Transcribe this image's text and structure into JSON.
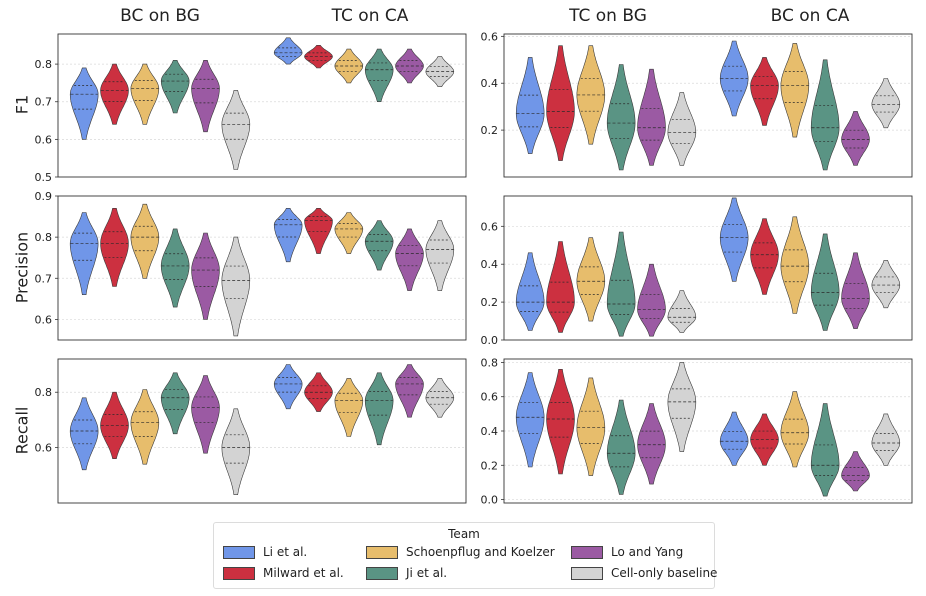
{
  "column_titles": [
    "BC on BG",
    "TC on CA",
    "TC on BG",
    "BC on CA"
  ],
  "row_labels": [
    "F1",
    "Precision",
    "Recall"
  ],
  "legend": {
    "title": "Team",
    "entries": [
      {
        "label": "Li et al.",
        "color": "#7096e8"
      },
      {
        "label": "Milward et al.",
        "color": "#cc3040"
      },
      {
        "label": "Schoenpflug and Koelzer",
        "color": "#e7bd6c"
      },
      {
        "label": "Ji et al.",
        "color": "#5a9484"
      },
      {
        "label": "Lo and Yang",
        "color": "#9b5aa3"
      },
      {
        "label": "Cell-only baseline",
        "color": "#d3d3d3"
      }
    ]
  },
  "chart_data": [
    {
      "type": "violin",
      "row": "F1",
      "panel": "left",
      "ylim": [
        0.5,
        0.88
      ],
      "yticks": [
        "0.5",
        "0.6",
        "0.7",
        "0.8"
      ],
      "groups": [
        {
          "name": "BC on BG",
          "series": [
            {
              "team": "Li et al.",
              "median": 0.72,
              "min": 0.6,
              "max": 0.79
            },
            {
              "team": "Milward et al.",
              "median": 0.73,
              "min": 0.64,
              "max": 0.8
            },
            {
              "team": "Schoenpflug and Koelzer",
              "median": 0.735,
              "min": 0.64,
              "max": 0.8
            },
            {
              "team": "Ji et al.",
              "median": 0.755,
              "min": 0.67,
              "max": 0.81
            },
            {
              "team": "Lo and Yang",
              "median": 0.735,
              "min": 0.62,
              "max": 0.81
            },
            {
              "team": "Cell-only baseline",
              "median": 0.64,
              "min": 0.52,
              "max": 0.73
            }
          ]
        },
        {
          "name": "TC on CA",
          "series": [
            {
              "team": "Li et al.",
              "median": 0.83,
              "min": 0.8,
              "max": 0.87
            },
            {
              "team": "Milward et al.",
              "median": 0.82,
              "min": 0.79,
              "max": 0.85
            },
            {
              "team": "Schoenpflug and Koelzer",
              "median": 0.795,
              "min": 0.75,
              "max": 0.84
            },
            {
              "team": "Ji et al.",
              "median": 0.785,
              "min": 0.7,
              "max": 0.84
            },
            {
              "team": "Lo and Yang",
              "median": 0.795,
              "min": 0.75,
              "max": 0.84
            },
            {
              "team": "Cell-only baseline",
              "median": 0.78,
              "min": 0.74,
              "max": 0.82
            }
          ]
        }
      ]
    },
    {
      "type": "violin",
      "row": "F1",
      "panel": "right",
      "ylim": [
        0.0,
        0.61
      ],
      "yticks": [
        "0.2",
        "0.4",
        "0.6"
      ],
      "groups": [
        {
          "name": "TC on BG",
          "series": [
            {
              "team": "Li et al.",
              "median": 0.27,
              "min": 0.1,
              "max": 0.51
            },
            {
              "team": "Milward et al.",
              "median": 0.28,
              "min": 0.07,
              "max": 0.56
            },
            {
              "team": "Schoenpflug and Koelzer",
              "median": 0.35,
              "min": 0.14,
              "max": 0.56
            },
            {
              "team": "Ji et al.",
              "median": 0.23,
              "min": 0.03,
              "max": 0.48
            },
            {
              "team": "Lo and Yang",
              "median": 0.21,
              "min": 0.05,
              "max": 0.46
            },
            {
              "team": "Cell-only baseline",
              "median": 0.19,
              "min": 0.05,
              "max": 0.36
            }
          ]
        },
        {
          "name": "BC on CA",
          "series": [
            {
              "team": "Li et al.",
              "median": 0.42,
              "min": 0.26,
              "max": 0.58
            },
            {
              "team": "Milward et al.",
              "median": 0.39,
              "min": 0.22,
              "max": 0.51
            },
            {
              "team": "Schoenpflug and Koelzer",
              "median": 0.39,
              "min": 0.17,
              "max": 0.57
            },
            {
              "team": "Ji et al.",
              "median": 0.21,
              "min": 0.03,
              "max": 0.5
            },
            {
              "team": "Lo and Yang",
              "median": 0.16,
              "min": 0.05,
              "max": 0.28
            },
            {
              "team": "Cell-only baseline",
              "median": 0.31,
              "min": 0.21,
              "max": 0.42
            }
          ]
        }
      ]
    },
    {
      "type": "violin",
      "row": "Precision",
      "panel": "left",
      "ylim": [
        0.55,
        0.9
      ],
      "yticks": [
        "0.6",
        "0.7",
        "0.8",
        "0.9"
      ],
      "groups": [
        {
          "name": "BC on BG",
          "series": [
            {
              "team": "Li et al.",
              "median": 0.785,
              "min": 0.66,
              "max": 0.86
            },
            {
              "team": "Milward et al.",
              "median": 0.785,
              "min": 0.68,
              "max": 0.87
            },
            {
              "team": "Schoenpflug and Koelzer",
              "median": 0.8,
              "min": 0.7,
              "max": 0.88
            },
            {
              "team": "Ji et al.",
              "median": 0.73,
              "min": 0.63,
              "max": 0.82
            },
            {
              "team": "Lo and Yang",
              "median": 0.72,
              "min": 0.6,
              "max": 0.81
            },
            {
              "team": "Cell-only baseline",
              "median": 0.695,
              "min": 0.56,
              "max": 0.8
            }
          ]
        },
        {
          "name": "TC on CA",
          "series": [
            {
              "team": "Li et al.",
              "median": 0.83,
              "min": 0.74,
              "max": 0.87
            },
            {
              "team": "Milward et al.",
              "median": 0.84,
              "min": 0.76,
              "max": 0.87
            },
            {
              "team": "Schoenpflug and Koelzer",
              "median": 0.82,
              "min": 0.76,
              "max": 0.86
            },
            {
              "team": "Ji et al.",
              "median": 0.79,
              "min": 0.72,
              "max": 0.84
            },
            {
              "team": "Lo and Yang",
              "median": 0.76,
              "min": 0.67,
              "max": 0.82
            },
            {
              "team": "Cell-only baseline",
              "median": 0.77,
              "min": 0.67,
              "max": 0.84
            }
          ]
        }
      ]
    },
    {
      "type": "violin",
      "row": "Precision",
      "panel": "right",
      "ylim": [
        0.0,
        0.76
      ],
      "yticks": [
        "0.0",
        "0.2",
        "0.4",
        "0.6"
      ],
      "groups": [
        {
          "name": "TC on BG",
          "series": [
            {
              "team": "Li et al.",
              "median": 0.2,
              "min": 0.05,
              "max": 0.46
            },
            {
              "team": "Milward et al.",
              "median": 0.2,
              "min": 0.04,
              "max": 0.52
            },
            {
              "team": "Schoenpflug and Koelzer",
              "median": 0.31,
              "min": 0.1,
              "max": 0.54
            },
            {
              "team": "Ji et al.",
              "median": 0.19,
              "min": 0.02,
              "max": 0.57
            },
            {
              "team": "Lo and Yang",
              "median": 0.16,
              "min": 0.02,
              "max": 0.4
            },
            {
              "team": "Cell-only baseline",
              "median": 0.12,
              "min": 0.04,
              "max": 0.26
            }
          ]
        },
        {
          "name": "BC on CA",
          "series": [
            {
              "team": "Li et al.",
              "median": 0.54,
              "min": 0.31,
              "max": 0.75
            },
            {
              "team": "Milward et al.",
              "median": 0.45,
              "min": 0.24,
              "max": 0.64
            },
            {
              "team": "Schoenpflug and Koelzer",
              "median": 0.39,
              "min": 0.14,
              "max": 0.65
            },
            {
              "team": "Ji et al.",
              "median": 0.25,
              "min": 0.05,
              "max": 0.56
            },
            {
              "team": "Lo and Yang",
              "median": 0.22,
              "min": 0.06,
              "max": 0.46
            },
            {
              "team": "Cell-only baseline",
              "median": 0.29,
              "min": 0.17,
              "max": 0.42
            }
          ]
        }
      ]
    },
    {
      "type": "violin",
      "row": "Recall",
      "panel": "left",
      "ylim": [
        0.4,
        0.92
      ],
      "yticks": [
        "0.6",
        "0.8"
      ],
      "groups": [
        {
          "name": "BC on BG",
          "series": [
            {
              "team": "Li et al.",
              "median": 0.66,
              "min": 0.52,
              "max": 0.78
            },
            {
              "team": "Milward et al.",
              "median": 0.68,
              "min": 0.56,
              "max": 0.8
            },
            {
              "team": "Schoenpflug and Koelzer",
              "median": 0.69,
              "min": 0.54,
              "max": 0.81
            },
            {
              "team": "Ji et al.",
              "median": 0.78,
              "min": 0.65,
              "max": 0.87
            },
            {
              "team": "Lo and Yang",
              "median": 0.745,
              "min": 0.58,
              "max": 0.86
            },
            {
              "team": "Cell-only baseline",
              "median": 0.6,
              "min": 0.43,
              "max": 0.74
            }
          ]
        },
        {
          "name": "TC on CA",
          "series": [
            {
              "team": "Li et al.",
              "median": 0.83,
              "min": 0.74,
              "max": 0.9
            },
            {
              "team": "Milward et al.",
              "median": 0.8,
              "min": 0.73,
              "max": 0.87
            },
            {
              "team": "Schoenpflug and Koelzer",
              "median": 0.77,
              "min": 0.64,
              "max": 0.85
            },
            {
              "team": "Ji et al.",
              "median": 0.77,
              "min": 0.61,
              "max": 0.87
            },
            {
              "team": "Lo and Yang",
              "median": 0.83,
              "min": 0.71,
              "max": 0.9
            },
            {
              "team": "Cell-only baseline",
              "median": 0.78,
              "min": 0.71,
              "max": 0.85
            }
          ]
        }
      ]
    },
    {
      "type": "violin",
      "row": "Recall",
      "panel": "right",
      "ylim": [
        -0.02,
        0.82
      ],
      "yticks": [
        "0.0",
        "0.2",
        "0.4",
        "0.6",
        "0.8"
      ],
      "groups": [
        {
          "name": "TC on BG",
          "series": [
            {
              "team": "Li et al.",
              "median": 0.48,
              "min": 0.19,
              "max": 0.74
            },
            {
              "team": "Milward et al.",
              "median": 0.47,
              "min": 0.15,
              "max": 0.76
            },
            {
              "team": "Schoenpflug and Koelzer",
              "median": 0.42,
              "min": 0.14,
              "max": 0.71
            },
            {
              "team": "Ji et al.",
              "median": 0.27,
              "min": 0.03,
              "max": 0.58
            },
            {
              "team": "Lo and Yang",
              "median": 0.32,
              "min": 0.09,
              "max": 0.56
            },
            {
              "team": "Cell-only baseline",
              "median": 0.57,
              "min": 0.28,
              "max": 0.8
            }
          ]
        },
        {
          "name": "BC on CA",
          "series": [
            {
              "team": "Li et al.",
              "median": 0.34,
              "min": 0.2,
              "max": 0.51
            },
            {
              "team": "Milward et al.",
              "median": 0.35,
              "min": 0.2,
              "max": 0.5
            },
            {
              "team": "Schoenpflug and Koelzer",
              "median": 0.39,
              "min": 0.19,
              "max": 0.63
            },
            {
              "team": "Ji et al.",
              "median": 0.2,
              "min": 0.02,
              "max": 0.56
            },
            {
              "team": "Lo and Yang",
              "median": 0.14,
              "min": 0.05,
              "max": 0.28
            },
            {
              "team": "Cell-only baseline",
              "median": 0.33,
              "min": 0.2,
              "max": 0.5
            }
          ]
        }
      ]
    }
  ]
}
